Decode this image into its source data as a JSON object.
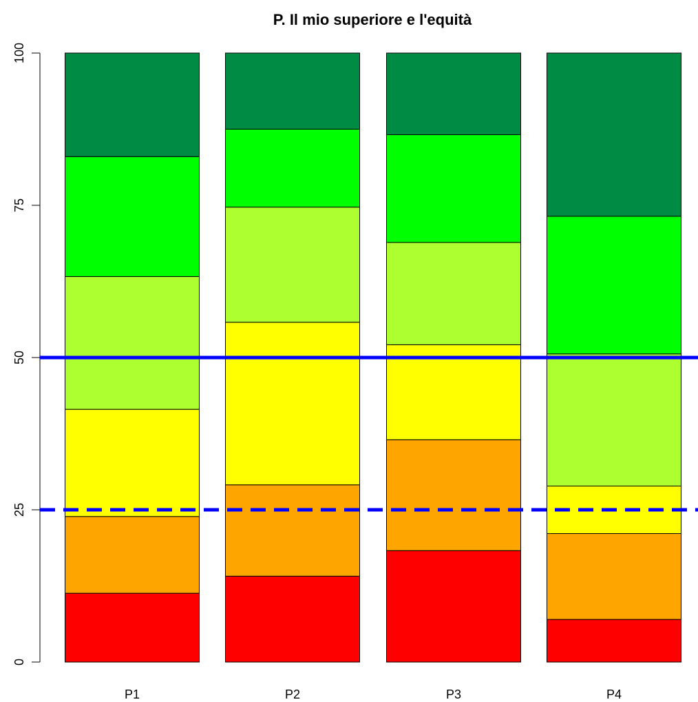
{
  "chart_data": {
    "type": "bar",
    "stacked": true,
    "title": "P. Il mio superiore e l'equità",
    "xlabel": "",
    "ylabel": "",
    "ylim": [
      0,
      100
    ],
    "yticks": [
      0,
      25,
      50,
      75,
      100
    ],
    "categories": [
      "P1",
      "P2",
      "P3",
      "P4"
    ],
    "series": [
      {
        "color": "#ff0000",
        "values": [
          11.3,
          14.1,
          18.3,
          7.0
        ]
      },
      {
        "color": "#ffa500",
        "values": [
          12.6,
          15.0,
          18.2,
          14.1
        ]
      },
      {
        "color": "#ffff00",
        "values": [
          17.6,
          26.7,
          15.6,
          7.8
        ]
      },
      {
        "color": "#adff2f",
        "values": [
          21.8,
          18.9,
          16.8,
          21.7
        ]
      },
      {
        "color": "#00ff00",
        "values": [
          19.7,
          12.8,
          17.7,
          22.6
        ]
      },
      {
        "color": "#008b45",
        "values": [
          17.0,
          12.5,
          13.4,
          26.8
        ]
      }
    ],
    "reference_lines": [
      {
        "y": 50,
        "style": "solid",
        "color": "#0000ff"
      },
      {
        "y": 25,
        "style": "dashed",
        "color": "#0000ff"
      }
    ],
    "grid": false,
    "legend": "none"
  }
}
